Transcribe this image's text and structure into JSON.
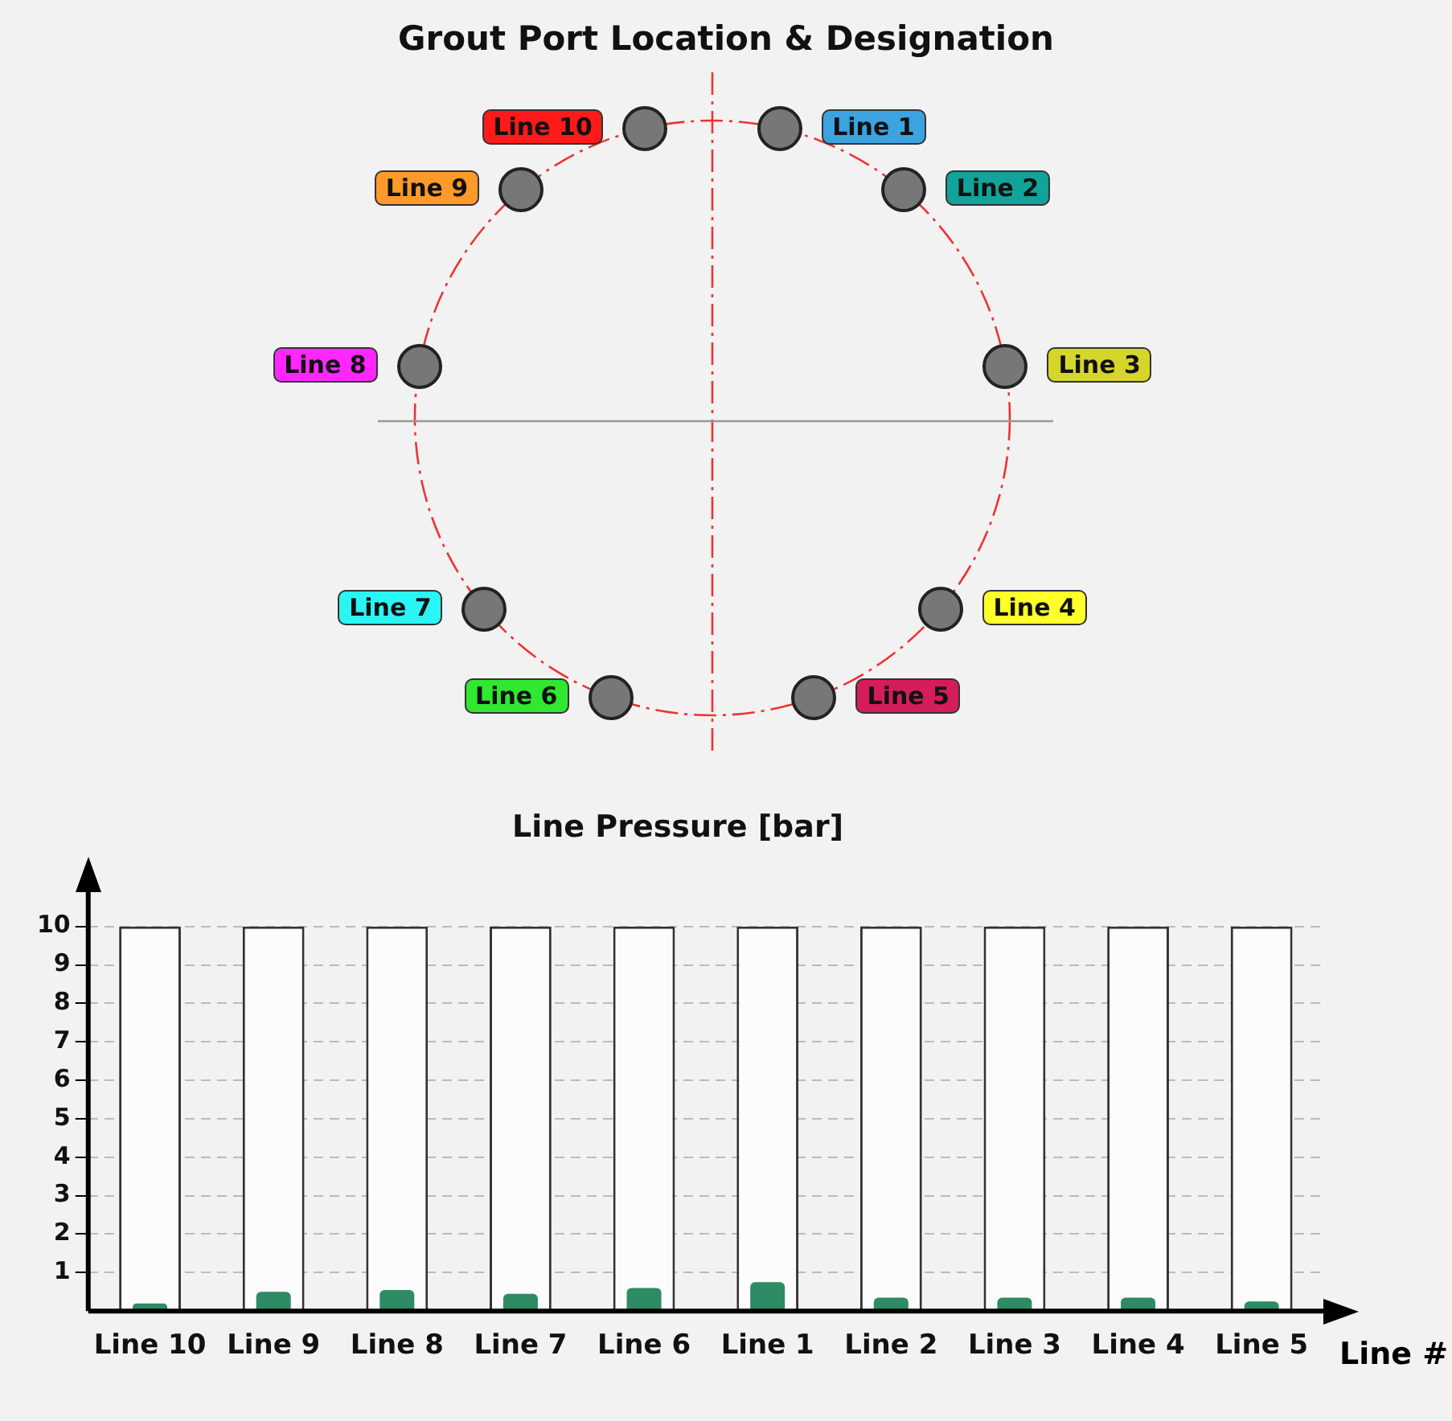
{
  "chart_data": [
    {
      "type": "other",
      "title": "Grout Port Location & Designation",
      "categories": [
        "Line 1",
        "Line 2",
        "Line 3",
        "Line 4",
        "Line 5",
        "Line 6",
        "Line 7",
        "Line 8",
        "Line 9",
        "Line 10"
      ],
      "colors": [
        "#3ba3e0",
        "#12a39a",
        "#d6d62a",
        "#ffff2a",
        "#d41d5a",
        "#2fe82f",
        "#2af5f5",
        "#ff26ff",
        "#ff9a2a",
        "#ff1a1a"
      ]
    },
    {
      "type": "bar",
      "title": "Line Pressure [bar]",
      "xlabel": "Line #",
      "categories": [
        "Line 10",
        "Line 9",
        "Line 8",
        "Line 7",
        "Line 6",
        "Line 1",
        "Line 2",
        "Line 3",
        "Line 4",
        "Line 5"
      ],
      "series": [
        {
          "color": "#fcfcfc",
          "values": [
            10,
            10,
            10,
            10,
            10,
            10,
            10,
            10,
            10,
            10
          ]
        },
        {
          "color": "#2e8b63",
          "values": [
            0.2,
            0.5,
            0.55,
            0.45,
            0.6,
            0.75,
            0.35,
            0.35,
            0.35,
            0.25
          ]
        }
      ],
      "ylim": [
        0,
        10.9
      ],
      "yticks": [
        1,
        2,
        3,
        4,
        5,
        6,
        7,
        8,
        9,
        10
      ],
      "grid": "y",
      "legend": false
    }
  ]
}
